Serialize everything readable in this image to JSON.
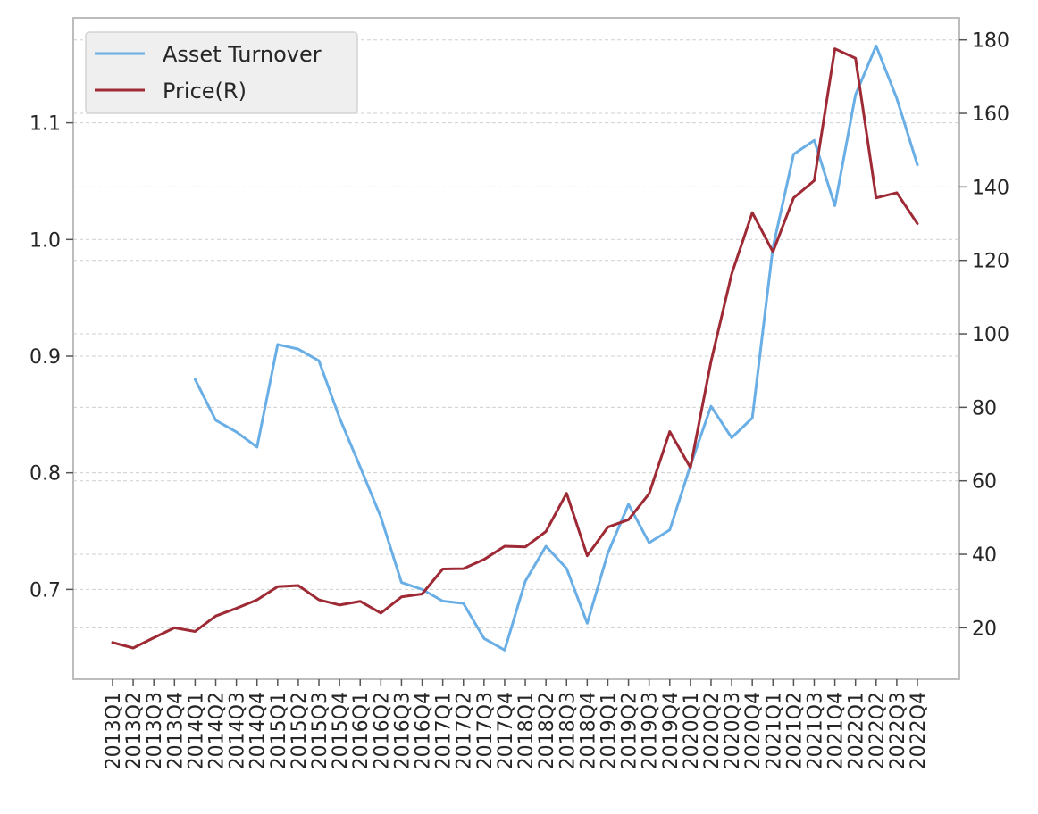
{
  "chart_data": {
    "type": "line",
    "categories": [
      "2013Q1",
      "2013Q2",
      "2013Q3",
      "2013Q4",
      "2014Q1",
      "2014Q2",
      "2014Q3",
      "2014Q4",
      "2015Q1",
      "2015Q2",
      "2015Q3",
      "2015Q4",
      "2016Q1",
      "2016Q2",
      "2016Q3",
      "2016Q4",
      "2017Q1",
      "2017Q2",
      "2017Q3",
      "2017Q4",
      "2018Q1",
      "2018Q2",
      "2018Q3",
      "2018Q4",
      "2019Q1",
      "2019Q2",
      "2019Q3",
      "2019Q4",
      "2020Q1",
      "2020Q2",
      "2020Q3",
      "2020Q4",
      "2021Q1",
      "2021Q2",
      "2021Q3",
      "2021Q4",
      "2022Q1",
      "2022Q2",
      "2022Q3",
      "2022Q4"
    ],
    "series": [
      {
        "name": "Asset Turnover",
        "axis": "left",
        "color": "#6aaee6",
        "values": [
          null,
          null,
          null,
          null,
          0.88,
          0.845,
          0.835,
          0.822,
          0.91,
          0.906,
          0.896,
          0.847,
          0.805,
          0.762,
          0.706,
          0.7,
          0.69,
          0.688,
          0.658,
          0.648,
          0.707,
          0.737,
          0.718,
          0.671,
          0.731,
          0.773,
          0.74,
          0.751,
          0.806,
          0.857,
          0.83,
          0.847,
          0.993,
          1.073,
          1.085,
          1.029,
          1.124,
          1.166,
          1.121,
          1.064
        ]
      },
      {
        "name": "Price(R)",
        "axis": "right",
        "color": "#9e2a35",
        "values": [
          16.0,
          14.5,
          17.3,
          20.0,
          19.0,
          23.2,
          25.3,
          27.6,
          31.2,
          31.5,
          27.6,
          26.2,
          27.2,
          24.0,
          28.4,
          29.2,
          36.0,
          36.1,
          38.6,
          42.2,
          42.0,
          46.2,
          56.6,
          39.6,
          47.4,
          49.4,
          56.5,
          73.4,
          63.6,
          92.5,
          116.3,
          133.0,
          122.3,
          137.0,
          141.7,
          177.6,
          175.0,
          137.0,
          138.4,
          130.0
        ]
      }
    ],
    "left_axis": {
      "ylim": [
        0.623,
        1.19
      ],
      "ticks": [
        "0.7",
        "0.8",
        "0.9",
        "1.0",
        "1.1"
      ]
    },
    "right_axis": {
      "ylim": [
        6.0,
        186.0
      ],
      "ticks": [
        "20",
        "40",
        "60",
        "80",
        "100",
        "120",
        "140",
        "160",
        "180"
      ]
    },
    "grid": true,
    "legend": {
      "position": "top-left",
      "entries": [
        "Asset Turnover",
        "Price(R)"
      ]
    }
  }
}
